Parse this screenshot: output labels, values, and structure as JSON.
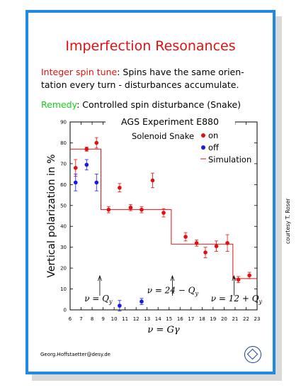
{
  "slide": {
    "title": "Imperfection Resonances",
    "line1_key": "Integer spin tune",
    "line1_rest": ": Spins have the same orien-",
    "line2": "tation every turn - disturbances accumulate.",
    "line3_key": "Remedy",
    "line3_rest": ": Controlled spin disturbance (Snake)",
    "footer": "Georg.Hoffstaetter@desy.de",
    "courtesy": "courtesy T. Roser"
  },
  "colors": {
    "frame": "#1e8ae6",
    "on": "#e01010",
    "off": "#1a1ae6",
    "remedy": "#16d016"
  },
  "chart_data": {
    "type": "scatter",
    "title": "AGS Experiment E880",
    "legend_title": "Solenoid Snake",
    "xlabel": "ν = Gγ",
    "ylabel": "Vertical polarization in %",
    "xlim": [
      6,
      23
    ],
    "ylim": [
      0,
      90
    ],
    "xticks": [
      6,
      7,
      8,
      9,
      10,
      11,
      12,
      13,
      14,
      15,
      16,
      17,
      18,
      19,
      20,
      21,
      22,
      23
    ],
    "yticks": [
      0,
      10,
      20,
      30,
      40,
      50,
      60,
      70,
      80,
      90
    ],
    "legend": [
      {
        "label": "on",
        "color": "#e01010",
        "kind": "dot"
      },
      {
        "label": "off",
        "color": "#1a1ae6",
        "kind": "dot"
      },
      {
        "label": "Simulation",
        "color": "#e01010",
        "kind": "line"
      }
    ],
    "series": [
      {
        "name": "on",
        "color": "#e01010",
        "points": [
          {
            "x": 6.5,
            "y": 68,
            "err": 4
          },
          {
            "x": 7.5,
            "y": 77,
            "err": 1
          },
          {
            "x": 8.4,
            "y": 80,
            "err": 2.5
          },
          {
            "x": 9.5,
            "y": 48,
            "err": 1.5
          },
          {
            "x": 10.5,
            "y": 58.5,
            "err": 2
          },
          {
            "x": 11.5,
            "y": 49,
            "err": 1.5
          },
          {
            "x": 12.5,
            "y": 48,
            "err": 1.5
          },
          {
            "x": 13.5,
            "y": 62,
            "err": 3.5
          },
          {
            "x": 14.5,
            "y": 46.5,
            "err": 2
          },
          {
            "x": 16.5,
            "y": 35,
            "err": 2
          },
          {
            "x": 17.5,
            "y": 32,
            "err": 1.5
          },
          {
            "x": 18.3,
            "y": 27.5,
            "err": 2.5
          },
          {
            "x": 19.3,
            "y": 30.5,
            "err": 2.5
          },
          {
            "x": 20.3,
            "y": 32,
            "err": 4
          },
          {
            "x": 21.3,
            "y": 14.5,
            "err": 1.5
          },
          {
            "x": 22.3,
            "y": 16.5,
            "err": 1.5
          }
        ]
      },
      {
        "name": "off",
        "color": "#1a1ae6",
        "points": [
          {
            "x": 6.5,
            "y": 61,
            "err": 4
          },
          {
            "x": 7.5,
            "y": 69.5,
            "err": 2.5
          },
          {
            "x": 8.4,
            "y": 61,
            "err": 4
          },
          {
            "x": 10.5,
            "y": 2,
            "err": 2.5
          },
          {
            "x": 12.5,
            "y": 4,
            "err": 1.5
          }
        ]
      },
      {
        "name": "Simulation",
        "color": "#e01010",
        "steps": [
          {
            "x": 6,
            "y": 77
          },
          {
            "x": 8.8,
            "y": 77
          },
          {
            "x": 8.8,
            "y": 48
          },
          {
            "x": 15.2,
            "y": 48
          },
          {
            "x": 15.2,
            "y": 31.5
          },
          {
            "x": 20.8,
            "y": 31.5
          },
          {
            "x": 20.8,
            "y": 15
          },
          {
            "x": 23,
            "y": 15
          }
        ]
      }
    ],
    "annotations": [
      {
        "text": "ν = Q",
        "sub": "y",
        "arrow_x": 8.7,
        "text_x": 7.3,
        "text_y": 4
      },
      {
        "text": "ν = 24 − Q",
        "sub": "y",
        "arrow_x": 15.3,
        "text_x": 13.0,
        "text_y": 8
      },
      {
        "text": "ν = 12 + Q",
        "sub": "y",
        "arrow_x": 20.9,
        "text_x": 18.8,
        "text_y": 4
      }
    ]
  }
}
